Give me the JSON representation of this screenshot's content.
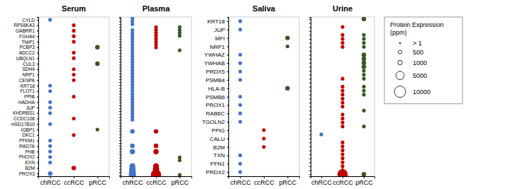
{
  "chart_data": [
    {
      "type": "scatter",
      "title": "Serum",
      "x_categories": [
        "chRCC",
        "ccRCC",
        "pRCC"
      ],
      "y_categories": [
        "PROX3",
        "B2M",
        "EXN",
        "PHOX2",
        "PHB",
        "RAD7A",
        "PFKM1",
        "DKC1",
        "IGBP1",
        "HSD17B10",
        "CCDC106",
        "KHDRBS1",
        "JUP",
        "HADHA",
        "PPIB",
        "FLOT1",
        "KRT18",
        "CENPA",
        "NRP1",
        "SDH4",
        "CUL3",
        "UBQLN1",
        "ADCC2",
        "PCBP3",
        "TNIP1",
        "FGHA4",
        "GABRR1",
        "RPS6KA3",
        "CYLD"
      ],
      "x": [
        "chRCC",
        "ccRCC",
        "ccRCC",
        "ccRCC",
        "ccRCC",
        "pRCC",
        "ccRCC",
        "ccRCC",
        "pRCC",
        "ccRCC",
        "ccRCC",
        "ccRCC",
        "chRCC",
        "chRCC",
        "ccRCC",
        "chRCC",
        "chRCC",
        "chRCC",
        "ccRCC",
        "chRCC",
        "pRCC",
        "ccRCC",
        "chRCC",
        "chRCC",
        "chRCC",
        "chRCC",
        "chRCC",
        "ccRCC",
        "chRCC"
      ],
      "y": [
        "CYLD",
        "RPS6KA3",
        "GABRR1",
        "FGHA4",
        "TNIP1",
        "PCBP3",
        "ADCC2",
        "UBQLN1",
        "CUL3",
        "SDH4",
        "NRP1",
        "CENPA",
        "KRT18",
        "FLOT1",
        "PPIB",
        "HADHA",
        "JUP",
        "KHDRBS1",
        "CCDC106",
        "HSD17B10",
        "IGBP1",
        "DKC1",
        "PFKM1",
        "RAD7A",
        "PHB",
        "PHOX2",
        "EXN",
        "B2M",
        "PROX3"
      ],
      "sizes": [
        500,
        500,
        500,
        500,
        500,
        1000,
        500,
        500,
        1000,
        500,
        500,
        500,
        500,
        500,
        500,
        500,
        500,
        500,
        500,
        500,
        500,
        500,
        500,
        500,
        500,
        500,
        500,
        1000,
        1000
      ],
      "colors": [
        "#4472C4",
        "#C00000",
        "#C00000",
        "#C00000",
        "#C00000",
        "#375623",
        "#C00000",
        "#C00000",
        "#375623",
        "#C00000",
        "#C00000",
        "#C00000",
        "#4472C4",
        "#4472C4",
        "#C00000",
        "#4472C4",
        "#4472C4",
        "#4472C4",
        "#C00000",
        "#4472C4",
        "#375623",
        "#C00000",
        "#4472C4",
        "#4472C4",
        "#4472C4",
        "#4472C4",
        "#4472C4",
        "#C00000",
        "#4472C4"
      ]
    },
    {
      "type": "scatter",
      "title": "Plasma",
      "x_categories": [
        "chRCC",
        "ccRCC",
        "pRCC"
      ],
      "y_categories": [
        null,
        null,
        null,
        null,
        null,
        null,
        null,
        null,
        null,
        null,
        null,
        null,
        null,
        null,
        null,
        null,
        null,
        null,
        null,
        null,
        null,
        null,
        null,
        null,
        null,
        null,
        null,
        null,
        null,
        null,
        null,
        null,
        null,
        null,
        null,
        null,
        null,
        null,
        null,
        null,
        null,
        null,
        null,
        null,
        null,
        null,
        null,
        null,
        null,
        null,
        null,
        null,
        null,
        null,
        null
      ],
      "x": [
        "chRCC",
        "chRCC",
        "chRCC",
        "ccRCC",
        "pRCC",
        "chRCC",
        "ccRCC",
        "pRCC",
        "chRCC",
        "ccRCC",
        "pRCC",
        "chRCC",
        "ccRCC",
        "pRCC",
        "chRCC",
        "ccRCC",
        "chRCC",
        "ccRCC",
        "chRCC",
        "ccRCC",
        "chRCC",
        "ccRCC",
        "chRCC",
        "pRCC",
        "chRCC",
        "chRCC",
        "chRCC",
        "chRCC",
        "chRCC",
        "chRCC",
        "chRCC",
        "chRCC",
        "chRCC",
        "chRCC",
        "chRCC",
        "chRCC",
        "chRCC",
        "chRCC",
        "chRCC",
        "chRCC",
        "chRCC",
        "chRCC",
        "chRCC",
        "chRCC",
        "chRCC",
        "chRCC",
        "chRCC",
        "chRCC",
        "chRCC",
        "ccRCC",
        "chRCC",
        "ccRCC",
        "chRCC",
        "ccRCC",
        "pRCC",
        "pRCC",
        "chRCC",
        "ccRCC",
        "chRCC",
        "ccRCC",
        "chRCC",
        "ccRCC",
        "chRCC",
        "ccRCC",
        "pRCC"
      ],
      "y": [
        54,
        53,
        52,
        51,
        51,
        50,
        50,
        50,
        49,
        49,
        49,
        48,
        48,
        48,
        47,
        47,
        46,
        46,
        45,
        45,
        44,
        44,
        43,
        43,
        42,
        41,
        40,
        39,
        38,
        37,
        36,
        35,
        34,
        33,
        32,
        31,
        30,
        29,
        28,
        27,
        26,
        25,
        24,
        23,
        22,
        21,
        20,
        19,
        15,
        15,
        10,
        10,
        8,
        8,
        6,
        5,
        3,
        3,
        2,
        2,
        1,
        1,
        0,
        0,
        0
      ],
      "sizes": [
        500,
        500,
        500,
        500,
        500,
        500,
        500,
        500,
        500,
        500,
        500,
        500,
        500,
        500,
        500,
        500,
        500,
        500,
        500,
        500,
        500,
        500,
        500,
        500,
        500,
        500,
        500,
        500,
        500,
        500,
        500,
        500,
        500,
        500,
        500,
        500,
        500,
        500,
        500,
        500,
        500,
        500,
        500,
        500,
        500,
        500,
        500,
        500,
        1000,
        1000,
        1000,
        1000,
        1500,
        1500,
        500,
        500,
        2000,
        2000,
        2500,
        2500,
        3000,
        3500,
        3500,
        8000,
        500
      ],
      "colors": [
        "#4472C4",
        "#4472C4",
        "#4472C4",
        "#C00000",
        "#375623",
        "#4472C4",
        "#C00000",
        "#375623",
        "#4472C4",
        "#C00000",
        "#375623",
        "#4472C4",
        "#C00000",
        "#375623",
        "#4472C4",
        "#C00000",
        "#4472C4",
        "#C00000",
        "#4472C4",
        "#C00000",
        "#4472C4",
        "#C00000",
        "#4472C4",
        "#375623",
        "#4472C4",
        "#4472C4",
        "#4472C4",
        "#4472C4",
        "#4472C4",
        "#4472C4",
        "#4472C4",
        "#4472C4",
        "#4472C4",
        "#4472C4",
        "#4472C4",
        "#4472C4",
        "#4472C4",
        "#4472C4",
        "#4472C4",
        "#4472C4",
        "#4472C4",
        "#4472C4",
        "#4472C4",
        "#4472C4",
        "#4472C4",
        "#4472C4",
        "#4472C4",
        "#4472C4",
        "#4472C4",
        "#C00000",
        "#4472C4",
        "#C00000",
        "#4472C4",
        "#C00000",
        "#375623",
        "#375623",
        "#4472C4",
        "#C00000",
        "#4472C4",
        "#C00000",
        "#4472C4",
        "#C00000",
        "#4472C4",
        "#C00000",
        "#375623"
      ]
    },
    {
      "type": "scatter",
      "title": "Saliva",
      "x_categories": [
        "chRCC",
        "ccRCC",
        "pRCC"
      ],
      "y_categories": [
        "PRDX2",
        "PFN1",
        "TXN",
        "B2M",
        "CALU",
        "PPiG",
        "TGOLN2",
        "RAB6C",
        "PROX1",
        "PSMB6",
        "HLA-B",
        "PSMB4",
        "PRDX5",
        "YWHAB",
        "YWHAZ",
        "NRP1",
        "MFI",
        "JUP",
        "KRT18"
      ],
      "x": [
        "chRCC",
        "chRCC",
        "pRCC",
        "pRCC",
        "chRCC",
        "chRCC",
        "chRCC",
        "chRCC",
        "pRCC",
        "chRCC",
        "chRCC",
        "chRCC",
        "chRCC",
        "ccRCC",
        "ccRCC",
        "ccRCC",
        "chRCC",
        "chRCC",
        "chRCC"
      ],
      "y": [
        "KRT18",
        "JUP",
        "MFI",
        "NRP1",
        "YWHAZ",
        "YWHAB",
        "PRDX5",
        "PSMB4",
        "HLA-B",
        "PSMB6",
        "PROX1",
        "RAB6C",
        "TGOLN2",
        "PPiG",
        "CALU",
        "B2M",
        "TXN",
        "PFN1",
        "PRDX2"
      ],
      "sizes": [
        500,
        500,
        1000,
        500,
        500,
        500,
        500,
        500,
        1000,
        500,
        500,
        500,
        500,
        500,
        500,
        500,
        500,
        500,
        500
      ],
      "colors": [
        "#4472C4",
        "#4472C4",
        "#375623",
        "#375623",
        "#4472C4",
        "#4472C4",
        "#4472C4",
        "#4472C4",
        "#375623",
        "#4472C4",
        "#4472C4",
        "#4472C4",
        "#4472C4",
        "#C00000",
        "#C00000",
        "#C00000",
        "#4472C4",
        "#4472C4",
        "#4472C4"
      ]
    },
    {
      "type": "scatter",
      "title": "Urine",
      "x_categories": [
        "chRCC",
        "ccRCC",
        "pRCC"
      ],
      "y_categories": [
        null,
        null,
        null,
        null,
        null,
        null,
        null,
        null,
        null,
        null,
        null,
        null,
        null,
        null,
        null,
        null,
        null,
        null,
        null,
        null,
        null,
        null,
        null,
        null,
        null,
        null,
        null,
        null,
        null,
        null,
        null,
        null,
        null,
        null,
        null,
        null,
        null,
        null,
        null,
        null
      ],
      "x": [
        "pRCC",
        "ccRCC",
        "ccRCC",
        "pRCC",
        "ccRCC",
        "pRCC",
        "ccRCC",
        "pRCC",
        "ccRCC",
        "pRCC",
        "pRCC",
        "pRCC",
        "pRCC",
        "pRCC",
        "pRCC",
        "pRCC",
        "ccRCC",
        "pRCC",
        "ccRCC",
        "pRCC",
        "ccRCC",
        "pRCC",
        "ccRCC",
        "pRCC",
        "ccRCC",
        "ccRCC",
        "ccRCC",
        "pRCC",
        "ccRCC",
        "ccRCC",
        "ccRCC",
        "ccRCC",
        "pRCC",
        "chRCC",
        "ccRCC",
        "ccRCC",
        "ccRCC",
        "ccRCC",
        "ccRCC",
        "ccRCC",
        "ccRCC",
        "ccRCC",
        "ccRCC",
        "pRCC"
      ],
      "y": [
        39,
        37,
        35,
        35,
        34,
        34,
        33,
        33,
        32,
        32,
        30,
        29,
        28,
        27,
        26,
        25,
        24,
        24,
        22,
        22,
        21,
        21,
        20,
        20,
        19,
        18,
        17,
        16,
        15,
        14,
        13,
        12,
        12,
        10,
        8,
        7,
        6,
        5,
        4,
        3,
        2,
        1,
        0,
        0
      ],
      "sizes": [
        1000,
        500,
        500,
        500,
        500,
        500,
        500,
        500,
        500,
        500,
        1000,
        1000,
        1000,
        1000,
        500,
        500,
        500,
        500,
        500,
        500,
        500,
        500,
        500,
        500,
        500,
        500,
        500,
        500,
        500,
        500,
        500,
        500,
        500,
        500,
        500,
        500,
        500,
        500,
        500,
        500,
        500,
        500,
        8000,
        1000
      ],
      "colors": [
        "#375623",
        "#C00000",
        "#C00000",
        "#375623",
        "#C00000",
        "#375623",
        "#C00000",
        "#375623",
        "#C00000",
        "#375623",
        "#375623",
        "#375623",
        "#375623",
        "#375623",
        "#375623",
        "#375623",
        "#C00000",
        "#375623",
        "#C00000",
        "#375623",
        "#C00000",
        "#375623",
        "#C00000",
        "#375623",
        "#C00000",
        "#C00000",
        "#C00000",
        "#375623",
        "#C00000",
        "#C00000",
        "#C00000",
        "#C00000",
        "#375623",
        "#4472C4",
        "#C00000",
        "#C00000",
        "#C00000",
        "#C00000",
        "#C00000",
        "#C00000",
        "#C00000",
        "#C00000",
        "#C00000",
        "#375623"
      ],
      "size_legend": {
        "title": "Protein Expression",
        "subtitle": "(ppm)",
        "sizes": [
          1,
          500,
          1000,
          5000,
          10000
        ],
        "labels": [
          "> 1",
          "500",
          "1000",
          "5000",
          "10000"
        ]
      }
    }
  ]
}
